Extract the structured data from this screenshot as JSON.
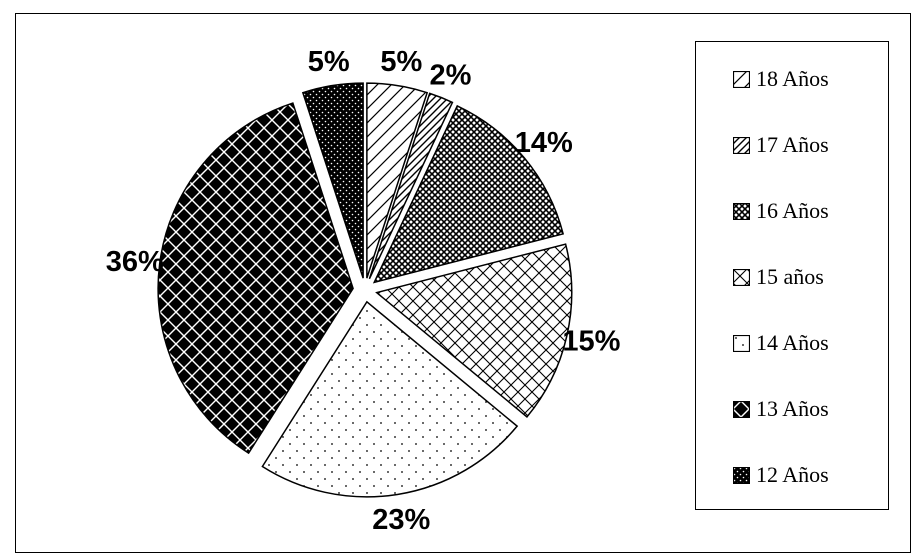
{
  "chart_data": {
    "type": "pie",
    "slices": [
      {
        "label": "12 Años",
        "value": 5,
        "display": "5%",
        "pattern": "dots-on-black"
      },
      {
        "label": "18 Años",
        "value": 5,
        "display": "5%",
        "pattern": "narrow-diagonal"
      },
      {
        "label": "17 Años",
        "value": 2,
        "display": "2%",
        "pattern": "wide-diagonal"
      },
      {
        "label": "16 Años",
        "value": 14,
        "display": "14%",
        "pattern": "dense-crosshatch"
      },
      {
        "label": "15 años",
        "value": 15,
        "display": "15%",
        "pattern": "diagonal-crosshatch"
      },
      {
        "label": "14 Años",
        "value": 23,
        "display": "23%",
        "pattern": "sparse-dots"
      },
      {
        "label": "13 Años",
        "value": 36,
        "display": "36%",
        "pattern": "checker-diamond"
      }
    ],
    "legend": {
      "placement": "right",
      "entries": [
        "18 Años",
        "17 Años",
        "16 Años",
        "15 años",
        "14 Años",
        "13 Años",
        "12 Años"
      ]
    },
    "colors": {
      "ink": "#000000",
      "background": "#ffffff"
    }
  }
}
